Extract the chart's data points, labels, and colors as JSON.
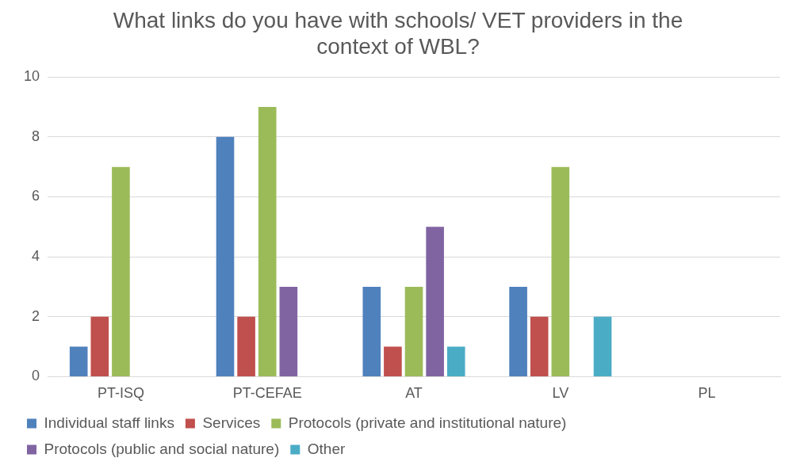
{
  "chart_data": {
    "type": "bar",
    "title": "What links do you have with schools/ VET providers in the context of WBL?",
    "categories": [
      "PT-ISQ",
      "PT-CEFAE",
      "AT",
      "LV",
      "PL"
    ],
    "series": [
      {
        "name": "Individual staff links",
        "color": "#4f81bd",
        "values": [
          1,
          8,
          3,
          3,
          0
        ]
      },
      {
        "name": "Services",
        "color": "#c0504d",
        "values": [
          2,
          2,
          1,
          2,
          0
        ]
      },
      {
        "name": "Protocols (private and institutional nature)",
        "color": "#9bbb59",
        "values": [
          7,
          9,
          3,
          7,
          0
        ]
      },
      {
        "name": "Protocols (public and social nature)",
        "color": "#8064a2",
        "values": [
          0,
          3,
          5,
          0,
          0
        ]
      },
      {
        "name": "Other",
        "color": "#4bacc6",
        "values": [
          0,
          0,
          1,
          2,
          0
        ]
      }
    ],
    "ylim": [
      0,
      10
    ],
    "yticks": [
      0,
      2,
      4,
      6,
      8,
      10
    ],
    "grid": "y",
    "legend": "bottom"
  }
}
